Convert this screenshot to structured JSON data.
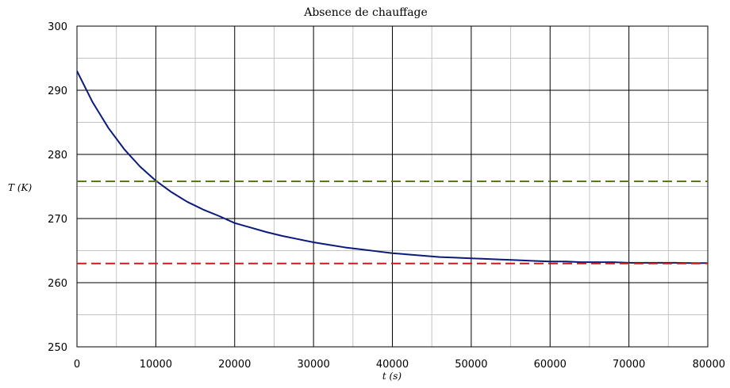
{
  "chart_data": {
    "type": "line",
    "title": "Absence de chauffage",
    "xlabel": "t (s)",
    "ylabel": "T (K)",
    "xlim": [
      0,
      80000
    ],
    "ylim": [
      250,
      300
    ],
    "x_ticks": [
      0,
      10000,
      20000,
      30000,
      40000,
      50000,
      60000,
      70000,
      80000
    ],
    "y_ticks": [
      250,
      260,
      270,
      280,
      290,
      300
    ],
    "x_minor_step": 5000,
    "y_minor_step": 5,
    "grid": true,
    "legend": "none",
    "series": [
      {
        "style": "solid",
        "color": "#0a1a7a",
        "x": [
          0,
          2000,
          4000,
          6000,
          8000,
          10000,
          12000,
          14000,
          16000,
          18000,
          20000,
          22000,
          24000,
          26000,
          28000,
          30000,
          32000,
          34000,
          36000,
          38000,
          40000,
          42000,
          44000,
          46000,
          48000,
          50000,
          52000,
          54000,
          56000,
          58000,
          60000,
          62000,
          64000,
          66000,
          68000,
          70000,
          72000,
          74000,
          76000,
          78000,
          80000
        ],
        "y": [
          293.0,
          288.1,
          284.1,
          280.8,
          278.1,
          275.9,
          274.1,
          272.6,
          271.4,
          270.4,
          269.3,
          268.6,
          267.9,
          267.3,
          266.8,
          266.3,
          265.9,
          265.5,
          265.2,
          264.9,
          264.6,
          264.4,
          264.2,
          264.0,
          263.9,
          263.8,
          263.7,
          263.6,
          263.5,
          263.4,
          263.3,
          263.3,
          263.2,
          263.2,
          263.2,
          263.1,
          263.1,
          263.1,
          263.1,
          263.05,
          263.05
        ]
      },
      {
        "style": "dashed",
        "color": "#5a7a1a",
        "x": [
          0,
          80000
        ],
        "y": [
          275.8,
          275.8
        ]
      },
      {
        "style": "dashed",
        "color": "#cc1a1a",
        "x": [
          0,
          80000
        ],
        "y": [
          263.0,
          263.0
        ]
      }
    ]
  }
}
